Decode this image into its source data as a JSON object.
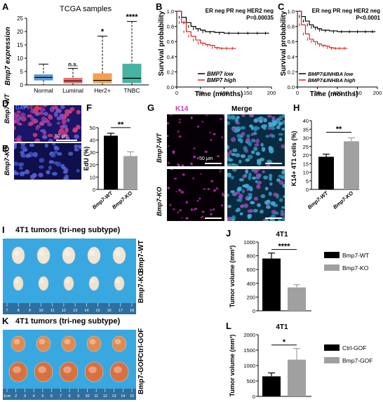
{
  "panels": {
    "A": "A",
    "B": "B",
    "C": "C",
    "D": "D",
    "E": "E",
    "F": "F",
    "G": "G",
    "H": "H",
    "I": "I",
    "J": "J",
    "K": "K",
    "L": "L"
  },
  "panelA": {
    "title": "TCGA samples",
    "ylabel": "Bmp7 expression",
    "categories": [
      "Normal",
      "Luminal",
      "Her2+",
      "TNBC"
    ],
    "sig": [
      "",
      "n.s.",
      "*",
      "****"
    ],
    "yticks": [
      "0",
      "5",
      "10",
      "15",
      "20",
      "25"
    ],
    "colors": [
      "#5b9bd5",
      "#e57373",
      "#f5a050",
      "#48b3a3"
    ]
  },
  "panelB": {
    "header": "ER neg PR neg HER2 neg",
    "pvalue": "P=0.00035",
    "ylabel": "Survival probability",
    "xlabel": "Time (months)",
    "legend_low": "BMP7 low",
    "legend_high": "BMP7 high",
    "yticks": [
      "0.0",
      "0.2",
      "0.4",
      "0.6",
      "0.8",
      "1.0"
    ],
    "xticks": [
      "0",
      "50",
      "100",
      "150",
      "200"
    ]
  },
  "panelC": {
    "header": "ER neg PR neg HER2 neg",
    "pvalue": "P<0.0001",
    "ylabel": "Survival probability",
    "xlabel": "Time (months)",
    "legend_low": "BMP7&INHBA low",
    "legend_high": "BMP7&INHBA high",
    "yticks": [
      "0.0",
      "0.2",
      "0.4",
      "0.6",
      "0.8",
      "1.0"
    ],
    "xticks": [
      "0",
      "50",
      "100",
      "150",
      "200"
    ]
  },
  "panelD": {
    "stain": "DAPI/EdU",
    "label": "Bmp7-WT",
    "scale": "50 μm"
  },
  "panelE": {
    "label": "Bmp7-KO"
  },
  "panelF": {
    "ylabel": "EdU (%)",
    "sig": "**",
    "yticks": [
      "0",
      "10",
      "20",
      "30",
      "40",
      "50"
    ],
    "categories": [
      "Bmp7-WT",
      "Bmp7-KO"
    ]
  },
  "panelG": {
    "col1": "K14",
    "col2": "Merge",
    "row1": "Bmp7-WT",
    "row2": "Bmp7-KO",
    "scale": "50 μm"
  },
  "panelH": {
    "ylabel": "K14+ 4T1 cells (%)",
    "sig": "**",
    "yticks": [
      "0",
      "5",
      "10",
      "15",
      "20",
      "25",
      "30",
      "35",
      "40"
    ],
    "categories": [
      "Bmp7-WT",
      "Bmp7-KO"
    ]
  },
  "panelI": {
    "title": "4T1 tumors (tri-neg subtype)",
    "row1": "Bmp7-WT",
    "row2": "Bmp7-KO",
    "ruler": [
      "7",
      "8",
      "9",
      "10",
      "11",
      "12",
      "13",
      "14",
      "15",
      "16",
      "17",
      "18"
    ]
  },
  "panelJ": {
    "title": "4T1",
    "ylabel": "Tumor volume (mm³)",
    "sig": "****",
    "yticks": [
      "0",
      "200",
      "400",
      "600",
      "800",
      "1000"
    ],
    "legend": [
      "Bmp7-WT",
      "Bmp7-KO"
    ]
  },
  "panelK": {
    "title": "4T1 tumors (tri-neg subtype)",
    "row1": "Ctrl-GOF",
    "row2": "Bmp7-GOF",
    "ruler": [
      "1cm",
      "2",
      "3",
      "4",
      "5",
      "6",
      "7",
      "8",
      "9",
      "10",
      "11",
      "12",
      "13",
      "14",
      "15"
    ]
  },
  "panelL": {
    "title": "4T1",
    "ylabel": "Tumor volume (mm³)",
    "sig": "*",
    "yticks": [
      "0",
      "500",
      "1000",
      "1500",
      "2000"
    ],
    "legend": [
      "Ctrl-GOF",
      "Bmp7-GOF"
    ]
  },
  "chart_data": [
    {
      "type": "box",
      "title": "TCGA samples",
      "ylabel": "Bmp7 expression",
      "categories": [
        "Normal",
        "Luminal",
        "Her2+",
        "TNBC"
      ],
      "whisker_low": [
        0,
        0,
        0,
        0
      ],
      "q1": [
        1.8,
        0.7,
        0.8,
        0.8
      ],
      "median": [
        2.8,
        1.5,
        1.7,
        2.5
      ],
      "q3": [
        3.8,
        2.5,
        4.2,
        7.8
      ],
      "whisker_high": [
        7.8,
        6.2,
        18.3,
        23.8
      ],
      "ylim": [
        0,
        25
      ]
    },
    {
      "type": "line",
      "xlabel": "Time (months)",
      "ylabel": "Survival probability",
      "xlim": [
        0,
        200
      ],
      "ylim": [
        0,
        1
      ],
      "series": [
        {
          "name": "BMP7 low",
          "x": [
            0,
            10,
            20,
            30,
            40,
            50,
            60,
            80,
            100,
            120,
            140,
            160,
            180,
            195
          ],
          "y": [
            1.0,
            0.92,
            0.85,
            0.8,
            0.77,
            0.75,
            0.73,
            0.72,
            0.71,
            0.71,
            0.71,
            0.71,
            0.71,
            0.71
          ]
        },
        {
          "name": "BMP7 high",
          "x": [
            0,
            10,
            20,
            30,
            40,
            50,
            60,
            70,
            80,
            90,
            100,
            110,
            125
          ],
          "y": [
            1.0,
            0.85,
            0.73,
            0.67,
            0.62,
            0.58,
            0.56,
            0.55,
            0.52,
            0.51,
            0.51,
            0.51,
            0.51
          ]
        }
      ]
    },
    {
      "type": "line",
      "xlabel": "Time (months)",
      "ylabel": "Survival probability",
      "xlim": [
        0,
        200
      ],
      "ylim": [
        0,
        1
      ],
      "series": [
        {
          "name": "BMP7&INHBA low",
          "x": [
            0,
            10,
            20,
            30,
            40,
            50,
            60,
            80,
            100,
            120,
            140,
            160,
            180,
            195
          ],
          "y": [
            1.0,
            0.93,
            0.87,
            0.82,
            0.79,
            0.77,
            0.75,
            0.74,
            0.73,
            0.73,
            0.73,
            0.73,
            0.73,
            0.73
          ]
        },
        {
          "name": "BMP7&INHBA high",
          "x": [
            0,
            10,
            20,
            30,
            40,
            50,
            60,
            70,
            80,
            90,
            100,
            110,
            125
          ],
          "y": [
            1.0,
            0.82,
            0.7,
            0.63,
            0.6,
            0.57,
            0.55,
            0.54,
            0.52,
            0.51,
            0.51,
            0.51,
            0.51
          ]
        }
      ]
    },
    {
      "type": "bar",
      "ylabel": "EdU (%)",
      "categories": [
        "Bmp7-WT",
        "Bmp7-KO"
      ],
      "values": [
        43.5,
        27
      ],
      "errors": [
        2,
        3.5
      ],
      "ylim": [
        0,
        50
      ]
    },
    {
      "type": "bar",
      "ylabel": "K14+ 4T1 cells (%)",
      "categories": [
        "Bmp7-WT",
        "Bmp7-KO"
      ],
      "values": [
        19,
        28
      ],
      "errors": [
        1.5,
        2
      ],
      "ylim": [
        0,
        40
      ]
    },
    {
      "type": "bar",
      "title": "4T1",
      "ylabel": "Tumor volume (mm³)",
      "categories": [
        "Bmp7-WT",
        "Bmp7-KO"
      ],
      "values": [
        760,
        340
      ],
      "errors": [
        80,
        40
      ],
      "ylim": [
        0,
        1000
      ]
    },
    {
      "type": "bar",
      "title": "4T1",
      "ylabel": "Tumor volume (mm³)",
      "categories": [
        "Ctrl-GOF",
        "Bmp7-GOF"
      ],
      "values": [
        650,
        1190
      ],
      "errors": [
        110,
        360
      ],
      "ylim": [
        0,
        2000
      ]
    }
  ]
}
